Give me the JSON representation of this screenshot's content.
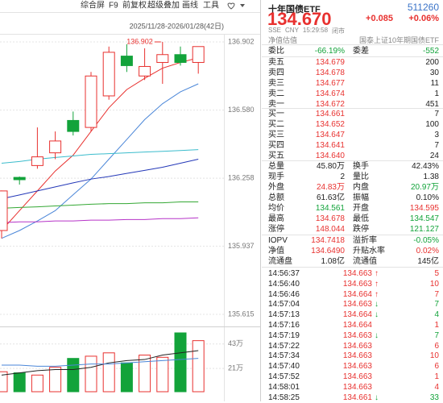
{
  "toolbar": [
    "综合屏",
    "F9",
    "前复权",
    "超级叠加",
    "画线",
    "工具"
  ],
  "chart": {
    "type": "candlestick",
    "date_range": "2025/11/28-2026/01/28(42日)",
    "ylim": [
      135.615,
      136.902
    ],
    "yticks": [
      136.902,
      {
        "value": 136.58,
        "label": "136.580"
      },
      136.258,
      135.937,
      135.615
    ],
    "up_color": "#e8312f",
    "down_color": "#12a33a",
    "candles": [
      {
        "o": 136.011,
        "h": 136.2,
        "l": 135.974,
        "c": 136.198
      },
      {
        "o": 136.262,
        "h": 136.266,
        "l": 136.228,
        "c": 136.251
      },
      {
        "o": 136.318,
        "h": 136.498,
        "l": 136.303,
        "c": 136.359
      },
      {
        "o": 136.378,
        "h": 136.479,
        "l": 136.348,
        "c": 136.434
      },
      {
        "o": 136.531,
        "h": 136.573,
        "l": 136.46,
        "c": 136.479
      },
      {
        "o": 136.498,
        "h": 136.76,
        "l": 136.479,
        "c": 136.741
      },
      {
        "o": 136.647,
        "h": 136.88,
        "l": 136.629,
        "c": 136.853
      },
      {
        "o": 136.835,
        "h": 136.891,
        "l": 136.76,
        "c": 136.79
      },
      {
        "o": 136.741,
        "h": 136.872,
        "l": 136.722,
        "c": 136.786
      },
      {
        "o": 136.805,
        "h": 136.902,
        "l": 136.704,
        "c": 136.842
      },
      {
        "o": 136.842,
        "h": 136.88,
        "l": 136.79,
        "c": 136.805
      },
      {
        "o": 136.805,
        "h": 136.88,
        "l": 136.752,
        "c": 136.88
      }
    ],
    "ma_lines": [
      {
        "color": "#e8312f",
        "values": [
          136.011,
          136.105,
          136.198,
          136.292,
          136.367,
          136.479,
          136.591,
          136.677,
          136.73,
          136.778,
          136.805,
          136.827
        ]
      },
      {
        "color": "#4a86d8",
        "values": [
          135.974,
          136.011,
          136.056,
          136.105,
          136.18,
          136.254,
          136.348,
          136.441,
          136.535,
          136.61,
          136.666,
          136.704
        ]
      },
      {
        "color": "#2438b8",
        "values": [
          136.161,
          136.179,
          136.198,
          136.217,
          136.236,
          136.254,
          136.266,
          136.281,
          136.295,
          136.31,
          136.329,
          136.348
        ]
      },
      {
        "color": "#3bbccc",
        "values": [
          136.329,
          136.337,
          136.348,
          136.356,
          136.363,
          136.371,
          136.374,
          136.378,
          136.382,
          136.385,
          136.389,
          136.393
        ]
      },
      {
        "color": "#34a834",
        "values": [
          136.116,
          136.12,
          136.123,
          136.127,
          136.131,
          136.135,
          136.138,
          136.138,
          136.142,
          136.142,
          136.146,
          136.146
        ]
      },
      {
        "color": "#b634c8",
        "values": [
          136.048,
          136.052,
          136.052,
          136.056,
          136.056,
          136.06,
          136.06,
          136.063,
          136.063,
          136.067,
          136.067,
          136.071
        ]
      }
    ],
    "volume": {
      "ylim": [
        0,
        53
      ],
      "yticks": [
        {
          "value": 43,
          "label": "43万"
        },
        {
          "value": 21,
          "label": "21万"
        }
      ],
      "values": [
        18,
        17,
        15,
        22,
        30,
        32,
        35,
        26,
        33,
        31,
        53,
        46
      ],
      "ma_lines": [
        {
          "color": "#222222",
          "values": [
            15,
            17,
            19,
            20,
            20,
            22,
            26,
            28,
            29,
            33,
            35,
            37
          ]
        },
        {
          "color": "#4a86d8",
          "values": [
            24,
            24,
            23,
            23,
            24,
            25,
            25,
            26,
            27,
            28,
            29,
            30
          ]
        }
      ]
    }
  },
  "quote": {
    "name": "十年国债ETF",
    "code": "511260",
    "price": "134.670",
    "change": "+0.085",
    "change_pct": "+0.06%",
    "status": [
      "SSE",
      "CNY",
      "15:29:58",
      "闭市"
    ],
    "nav_label": "净值估值",
    "fund_name": "国泰上证10年期国债ETF",
    "order_ratio": [
      "委比",
      "-66.19%",
      "委差",
      "-552"
    ],
    "asks": [
      [
        "卖五",
        "134.679",
        "200"
      ],
      [
        "卖四",
        "134.678",
        "30"
      ],
      [
        "卖三",
        "134.677",
        "11"
      ],
      [
        "卖二",
        "134.674",
        "1"
      ],
      [
        "卖一",
        "134.672",
        "451"
      ]
    ],
    "bids": [
      [
        "买一",
        "134.661",
        "7"
      ],
      [
        "买二",
        "134.652",
        "100"
      ],
      [
        "买三",
        "134.647",
        "3"
      ],
      [
        "买四",
        "134.641",
        "7"
      ],
      [
        "买五",
        "134.640",
        "24"
      ]
    ],
    "stats": [
      [
        "总量",
        "45.80万",
        "换手",
        "42.43%"
      ],
      [
        "现手",
        "2",
        "量比",
        "1.38"
      ],
      [
        "外盘",
        "24.83万",
        "内盘",
        "20.97万"
      ],
      [
        "总额",
        "61.63亿",
        "振幅",
        "0.10%"
      ],
      [
        "均价",
        "134.561",
        "开盘",
        "134.595"
      ],
      [
        "最高",
        "134.678",
        "最低",
        "134.547"
      ],
      [
        "涨停",
        "148.044",
        "跌停",
        "121.127"
      ]
    ],
    "fund_stats": [
      [
        "IOPV",
        "134.7418",
        "溢折率",
        "-0.05%"
      ],
      [
        "净值",
        "134.6490",
        "升贴水率",
        "0.02%"
      ],
      [
        "流通盘",
        "1.08亿",
        "流通值",
        "145亿"
      ]
    ],
    "ticks": [
      {
        "time": "14:56:37",
        "price": "134.663",
        "arrow": "↑",
        "volume": "5"
      },
      {
        "time": "14:56:40",
        "price": "134.663",
        "arrow": "↑",
        "volume": "10"
      },
      {
        "time": "14:56:46",
        "price": "134.664",
        "arrow": "↑",
        "volume": "7"
      },
      {
        "time": "14:57:04",
        "price": "134.663",
        "arrow": "↓",
        "volume": "7"
      },
      {
        "time": "14:57:13",
        "price": "134.664",
        "arrow": "↓",
        "volume": "4"
      },
      {
        "time": "14:57:16",
        "price": "134.664",
        "volume": "1"
      },
      {
        "time": "14:57:19",
        "price": "134.663",
        "arrow": "↓",
        "volume": "7"
      },
      {
        "time": "14:57:22",
        "price": "134.663",
        "volume": "6"
      },
      {
        "time": "14:57:34",
        "price": "134.663",
        "volume": "10"
      },
      {
        "time": "14:57:40",
        "price": "134.663",
        "volume": "6"
      },
      {
        "time": "14:57:52",
        "price": "134.663",
        "volume": "1"
      },
      {
        "time": "14:58:01",
        "price": "134.663",
        "volume": "4"
      },
      {
        "time": "14:58:25",
        "price": "134.661",
        "arrow": "↓",
        "volume": "33"
      }
    ]
  }
}
